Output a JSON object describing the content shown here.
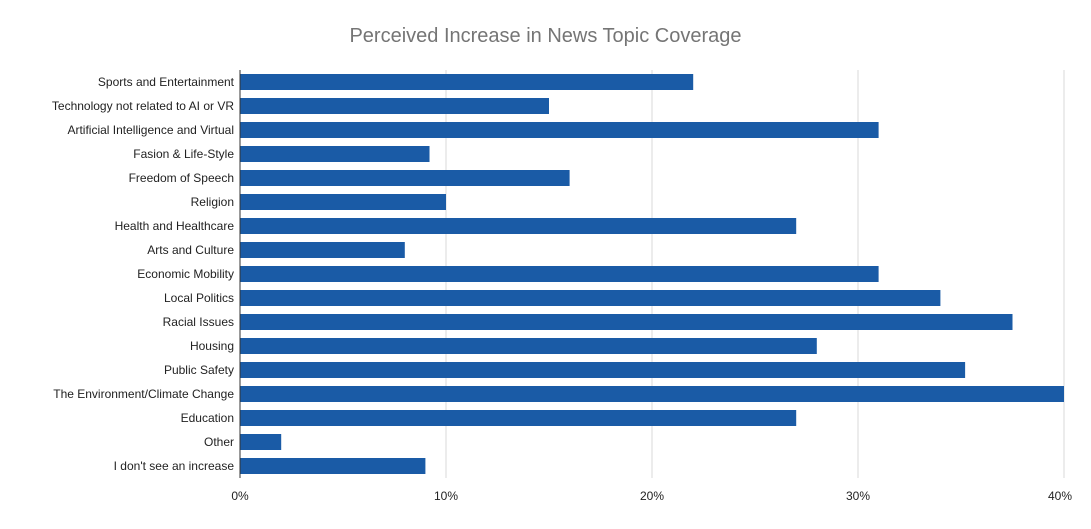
{
  "chart_data": {
    "type": "bar",
    "orientation": "horizontal",
    "title": "Perceived Increase in News Topic Coverage",
    "xlabel": "",
    "ylabel": "",
    "xlim": [
      0,
      40
    ],
    "x_ticks": [
      0,
      10,
      20,
      30,
      40
    ],
    "x_tick_labels": [
      "0%",
      "10%",
      "20%",
      "30%",
      "40%"
    ],
    "grid": true,
    "legend": "none",
    "bar_color": "#1a5ba6",
    "categories": [
      "Sports and Entertainment",
      "Technology not related to AI or VR",
      "Artificial Intelligence and Virtual",
      "Fasion & Life-Style",
      "Freedom of Speech",
      "Religion",
      "Health and Healthcare",
      "Arts and Culture",
      "Economic Mobility",
      "Local Politics",
      "Racial Issues",
      "Housing",
      "Public Safety",
      "The Environment/Climate Change",
      "Education",
      "Other",
      "I don't see an increase"
    ],
    "values": [
      22,
      15,
      31,
      9.2,
      16,
      10,
      27,
      8,
      31,
      34,
      37.5,
      28,
      35.2,
      40,
      27,
      2,
      9
    ]
  }
}
